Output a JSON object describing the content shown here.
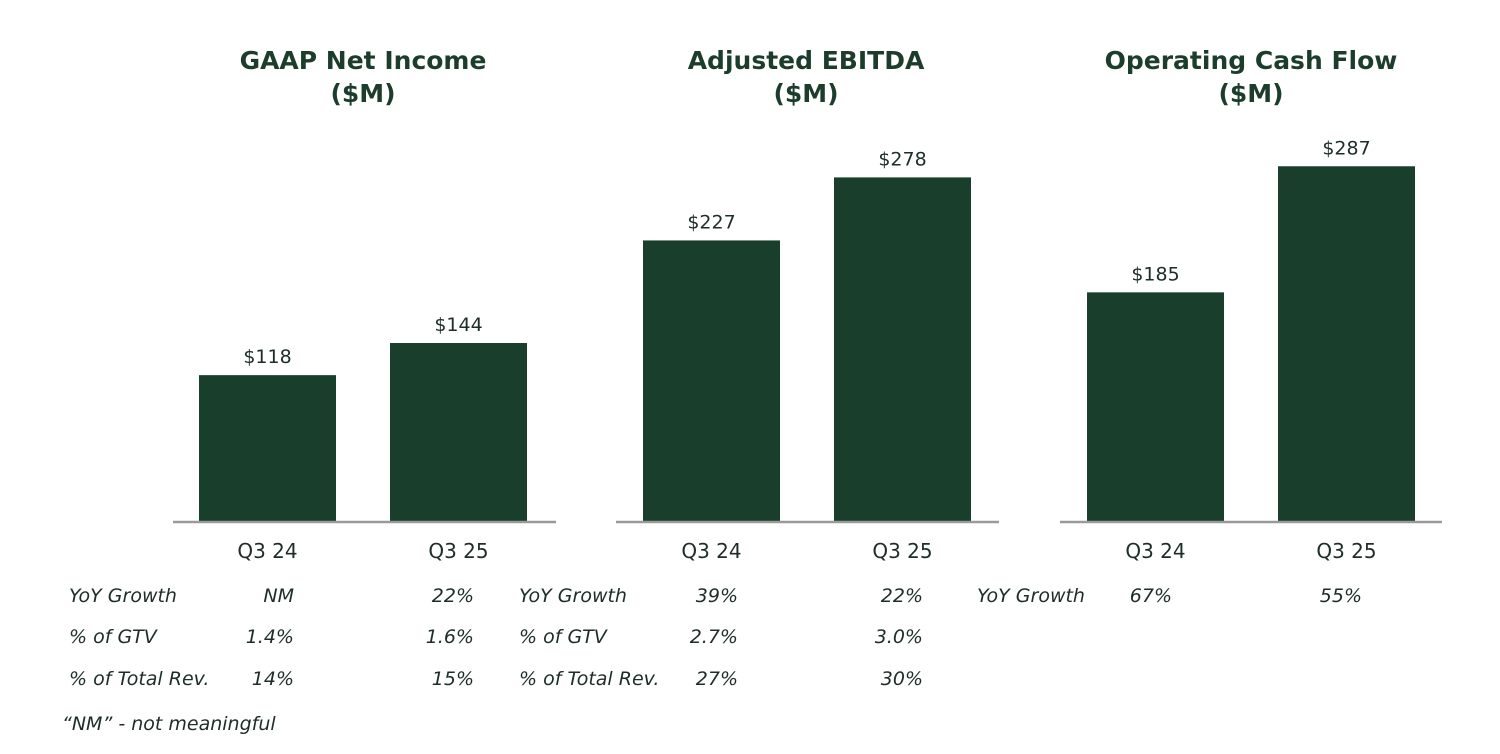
{
  "chart_data": [
    {
      "type": "bar",
      "title": "GAAP Net Income",
      "unit": "($M)",
      "categories": [
        "Q3 24",
        "Q3 25"
      ],
      "values": [
        118,
        144
      ],
      "value_labels": [
        "$118",
        "$144"
      ],
      "ylim": [
        0,
        300
      ],
      "color": "#193e2c"
    },
    {
      "type": "bar",
      "title": "Adjusted EBITDA",
      "unit": "($M)",
      "categories": [
        "Q3 24",
        "Q3 25"
      ],
      "values": [
        227,
        278
      ],
      "value_labels": [
        "$227",
        "$278"
      ],
      "ylim": [
        0,
        300
      ],
      "color": "#193e2c"
    },
    {
      "type": "bar",
      "title": "Operating Cash Flow",
      "unit": "($M)",
      "categories": [
        "Q3 24",
        "Q3 25"
      ],
      "values": [
        185,
        287
      ],
      "value_labels": [
        "$185",
        "$287"
      ],
      "ylim": [
        0,
        300
      ],
      "color": "#193e2c"
    }
  ],
  "metrics": {
    "net_income": {
      "yoy_label": "YoY Growth",
      "yoy": [
        "NM",
        "22%"
      ],
      "gtv_label": "% of GTV",
      "gtv": [
        "1.4%",
        "1.6%"
      ],
      "rev_label": "% of Total Rev.",
      "rev": [
        "14%",
        "15%"
      ]
    },
    "ebitda": {
      "yoy_label": "YoY Growth",
      "yoy": [
        "39%",
        "22%"
      ],
      "gtv_label": "% of GTV",
      "gtv": [
        "2.7%",
        "3.0%"
      ],
      "rev_label": "% of Total Rev.",
      "rev": [
        "27%",
        "30%"
      ]
    },
    "cash_flow": {
      "yoy_label": "YoY Growth",
      "yoy": [
        "67%",
        "55%"
      ]
    }
  },
  "footnote": "“NM” - not meaningful",
  "colors": {
    "bar": "#193e2c",
    "axis": "#9a9a9a",
    "title": "#1c3d2c"
  }
}
